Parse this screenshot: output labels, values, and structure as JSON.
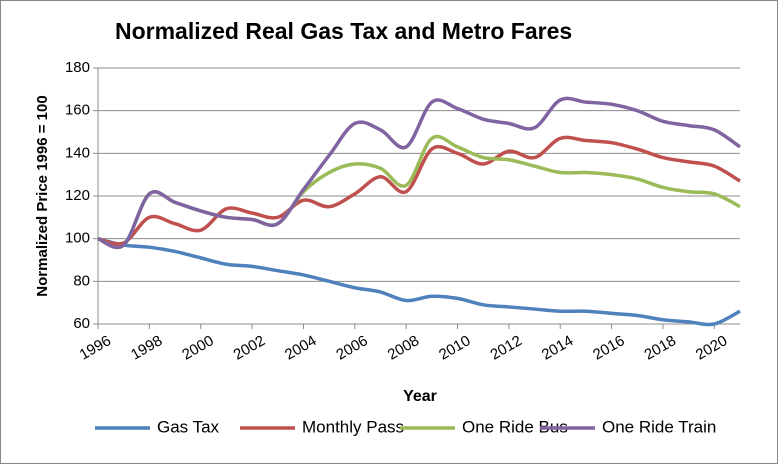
{
  "chart_data": {
    "type": "line",
    "title": "Normalized Real Gas Tax and Metro Fares",
    "xlabel": "Year",
    "ylabel": "Normalized Price 1996 = 100",
    "x": [
      1996,
      1997,
      1998,
      1999,
      2000,
      2001,
      2002,
      2003,
      2004,
      2005,
      2006,
      2007,
      2008,
      2009,
      2010,
      2011,
      2012,
      2013,
      2014,
      2015,
      2016,
      2017,
      2018,
      2019,
      2020,
      2021
    ],
    "series": [
      {
        "name": "Gas Tax",
        "color": "#4f81bd",
        "values": [
          100,
          97,
          96,
          94,
          91,
          88,
          87,
          85,
          83,
          80,
          77,
          75,
          71,
          73,
          72,
          69,
          68,
          67,
          66,
          66,
          65,
          64,
          62,
          61,
          60,
          66
        ]
      },
      {
        "name": "Monthly Pass",
        "color": "#c0504d",
        "values": [
          100,
          98,
          110,
          107,
          104,
          114,
          112,
          110,
          118,
          115,
          121,
          129,
          122,
          142,
          140,
          135,
          141,
          138,
          147,
          146,
          145,
          142,
          138,
          136,
          134,
          127
        ]
      },
      {
        "name": "One Ride Bus",
        "color": "#9bbb59",
        "values": [
          100,
          97,
          121,
          117,
          113,
          110,
          109,
          107,
          122,
          131,
          135,
          133,
          125,
          147,
          143,
          138,
          137,
          134,
          131,
          131,
          130,
          128,
          124,
          122,
          121,
          115
        ]
      },
      {
        "name": "One Ride Train",
        "color": "#8064a2",
        "values": [
          100,
          97,
          121,
          117,
          113,
          110,
          109,
          107,
          123,
          139,
          154,
          151,
          143,
          164,
          161,
          156,
          154,
          152,
          165,
          164,
          163,
          160,
          155,
          153,
          151,
          143
        ]
      }
    ],
    "xlim": [
      1996,
      2021
    ],
    "xticks": [
      1996,
      1998,
      2000,
      2002,
      2004,
      2006,
      2008,
      2010,
      2012,
      2014,
      2016,
      2018,
      2020
    ],
    "ylim": [
      60,
      180
    ],
    "yticks": [
      60,
      80,
      100,
      120,
      140,
      160,
      180
    ],
    "grid": true,
    "legend": "bottom"
  }
}
